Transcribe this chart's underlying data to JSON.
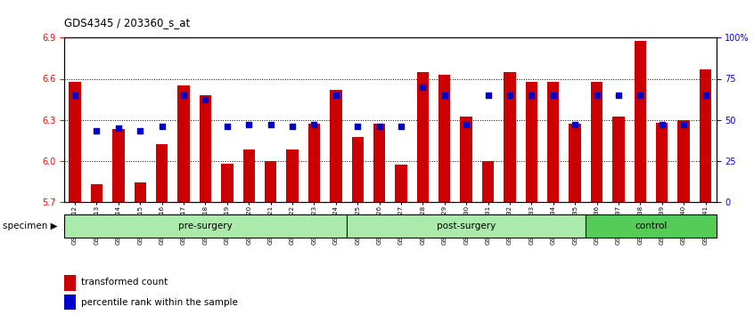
{
  "title": "GDS4345 / 203360_s_at",
  "samples": [
    "GSM842012",
    "GSM842013",
    "GSM842014",
    "GSM842015",
    "GSM842016",
    "GSM842017",
    "GSM842018",
    "GSM842019",
    "GSM842020",
    "GSM842021",
    "GSM842022",
    "GSM842023",
    "GSM842024",
    "GSM842025",
    "GSM842026",
    "GSM842027",
    "GSM842028",
    "GSM842029",
    "GSM842030",
    "GSM842031",
    "GSM842032",
    "GSM842033",
    "GSM842034",
    "GSM842035",
    "GSM842036",
    "GSM842037",
    "GSM842038",
    "GSM842039",
    "GSM842040",
    "GSM842041"
  ],
  "bar_values": [
    6.58,
    5.83,
    6.23,
    5.84,
    6.12,
    6.55,
    6.48,
    5.98,
    6.08,
    6.0,
    6.08,
    6.27,
    6.52,
    6.17,
    6.27,
    5.97,
    6.65,
    6.63,
    6.32,
    6.0,
    6.65,
    6.58,
    6.58,
    6.27,
    6.58,
    6.32,
    6.88,
    6.28,
    6.3,
    6.67
  ],
  "percentile_pct": [
    65,
    43,
    45,
    43,
    46,
    65,
    62,
    46,
    47,
    47,
    46,
    47,
    65,
    46,
    46,
    46,
    70,
    65,
    47,
    65,
    65,
    65,
    65,
    47,
    65,
    65,
    65,
    47,
    47,
    65
  ],
  "group_starts": [
    0,
    13,
    24
  ],
  "group_ends": [
    13,
    24,
    30
  ],
  "group_labels": [
    "pre-surgery",
    "post-surgery",
    "control"
  ],
  "group_colors": [
    "#aaeaaa",
    "#aaeaaa",
    "#55cc55"
  ],
  "ymin": 5.7,
  "ymax": 6.9,
  "yticks": [
    5.7,
    6.0,
    6.3,
    6.6,
    6.9
  ],
  "right_yticks": [
    0,
    25,
    50,
    75,
    100
  ],
  "right_yticklabels": [
    "0",
    "25",
    "50",
    "75",
    "100%"
  ],
  "bar_color": "#CC0000",
  "dot_color": "#0000CC",
  "legend_items": [
    {
      "label": "transformed count",
      "color": "#CC0000"
    },
    {
      "label": "percentile rank within the sample",
      "color": "#0000CC"
    }
  ],
  "specimen_label": "specimen"
}
